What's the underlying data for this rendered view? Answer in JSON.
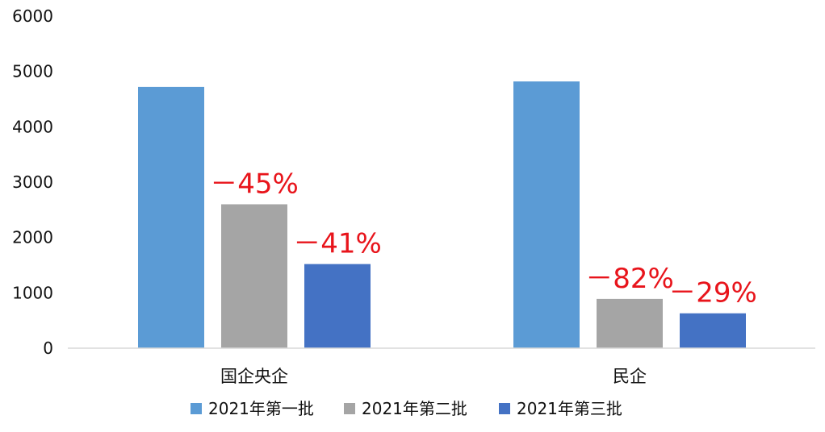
{
  "chart_data": {
    "type": "bar",
    "categories": [
      "国企央企",
      "民企"
    ],
    "series": [
      {
        "name": "2021年第一批",
        "color": "#5b9bd5",
        "values": [
          4720,
          4820
        ]
      },
      {
        "name": "2021年第二批",
        "color": "#a5a5a5",
        "values": [
          2600,
          890
        ]
      },
      {
        "name": "2021年第三批",
        "color": "#4472c4",
        "values": [
          1520,
          630
        ]
      }
    ],
    "annotations": [
      {
        "category": 0,
        "series": 1,
        "text": "－45%"
      },
      {
        "category": 0,
        "series": 2,
        "text": "－41%"
      },
      {
        "category": 1,
        "series": 1,
        "text": "－82%"
      },
      {
        "category": 1,
        "series": 2,
        "text": "－29%"
      }
    ],
    "ylim": [
      0,
      6000
    ],
    "yticks": [
      0,
      1000,
      2000,
      3000,
      4000,
      5000,
      6000
    ],
    "grid": false,
    "legend": "bottom",
    "annotation_color": "#e8141b",
    "axis_color": "#d9d9d9"
  }
}
